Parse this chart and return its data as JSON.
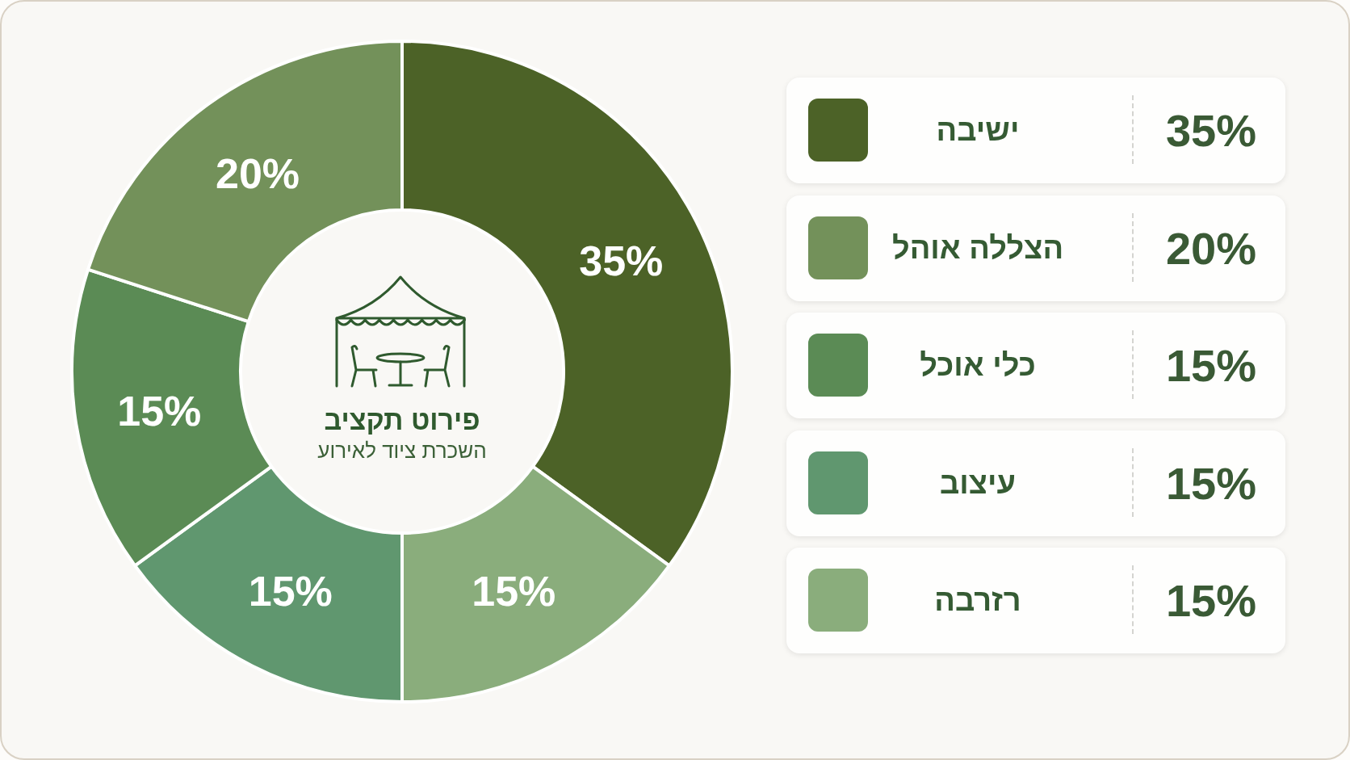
{
  "chart_data": {
    "type": "donut",
    "title": "פירוט תקציב",
    "subtitle": "השכרת ציוד לאירוע",
    "categories": [
      "ישיבה",
      "הצללה אוהל",
      "כלי אוכל",
      "עיצוב",
      "רזרבה"
    ],
    "values": [
      35,
      20,
      15,
      15,
      15
    ],
    "colors": [
      "#4c6227",
      "#73915a",
      "#5b8b55",
      "#60976f",
      "#8aad7c"
    ],
    "value_labels": [
      "35%",
      "20%",
      "15%",
      "15%",
      "15%"
    ],
    "legend": "right"
  }
}
